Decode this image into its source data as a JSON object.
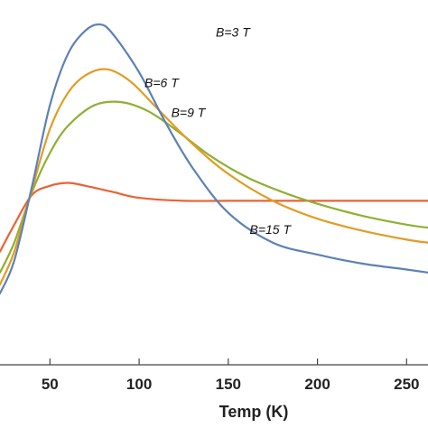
{
  "chart_data": {
    "type": "line",
    "xlabel": "Temp (K)",
    "ylabel": "",
    "xlim": [
      22,
      262
    ],
    "ylim": [
      0,
      1
    ],
    "grid": false,
    "x_ticks": [
      50,
      100,
      150,
      200,
      250
    ],
    "x_tick_labels": [
      "50",
      "100",
      "150",
      "200",
      "250"
    ],
    "series": [
      {
        "name": "B=3 T",
        "color": "#5e81b5",
        "x": [
          22,
          30,
          40,
          50,
          60,
          70,
          78,
          85,
          100,
          115,
          130,
          150,
          175,
          200,
          225,
          250,
          262
        ],
        "y": [
          0.13,
          0.24,
          0.49,
          0.76,
          0.93,
          1.01,
          1.03,
          1.0,
          0.87,
          0.7,
          0.55,
          0.4,
          0.3,
          0.26,
          0.23,
          0.21,
          0.2
        ]
      },
      {
        "name": "B=6 T",
        "color": "#e19c24",
        "x": [
          22,
          30,
          40,
          50,
          60,
          70,
          82,
          95,
          110,
          130,
          150,
          175,
          200,
          225,
          250,
          262
        ],
        "y": [
          0.16,
          0.27,
          0.48,
          0.68,
          0.8,
          0.86,
          0.88,
          0.84,
          0.75,
          0.63,
          0.53,
          0.44,
          0.38,
          0.34,
          0.31,
          0.3
        ]
      },
      {
        "name": "B=9 T",
        "color": "#8fb032",
        "x": [
          22,
          30,
          40,
          50,
          60,
          75,
          90,
          105,
          120,
          140,
          160,
          180,
          200,
          225,
          250,
          262
        ],
        "y": [
          0.2,
          0.3,
          0.47,
          0.6,
          0.69,
          0.76,
          0.77,
          0.74,
          0.68,
          0.59,
          0.52,
          0.47,
          0.43,
          0.39,
          0.36,
          0.35
        ]
      },
      {
        "name": "B=15 T",
        "color": "#eb6235",
        "x": [
          22,
          30,
          40,
          50,
          60,
          70,
          85,
          100,
          125,
          150,
          175,
          200,
          225,
          250,
          262
        ],
        "y": [
          0.27,
          0.36,
          0.46,
          0.49,
          0.5,
          0.49,
          0.47,
          0.45,
          0.44,
          0.44,
          0.44,
          0.44,
          0.44,
          0.44,
          0.44
        ]
      }
    ],
    "annotations": [
      {
        "text": "B=3 T",
        "series": "B=3 T",
        "x": 143,
        "y": 0.99
      },
      {
        "text": "B=6 T",
        "series": "B=6 T",
        "x": 103,
        "y": 0.82
      },
      {
        "text": "B=9 T",
        "series": "B=9 T",
        "x": 118,
        "y": 0.72
      },
      {
        "text": "B=15 T",
        "series": "B=15 T",
        "x": 162,
        "y": 0.33
      }
    ]
  }
}
